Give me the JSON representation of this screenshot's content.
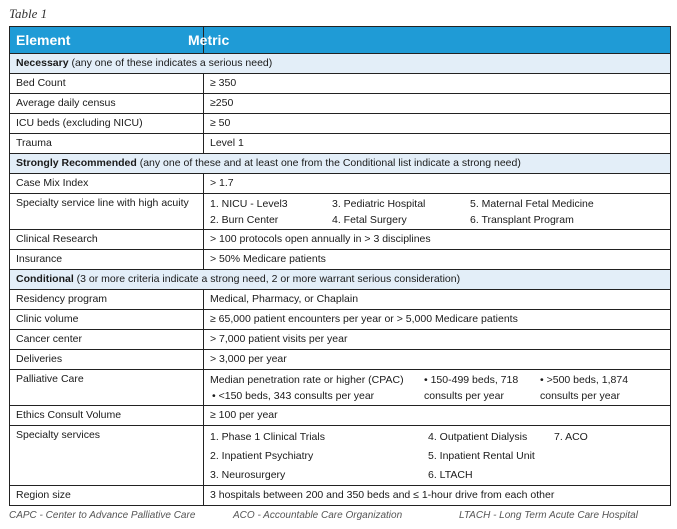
{
  "caption": "Table 1",
  "header": {
    "element": "Element",
    "metric": "Metric"
  },
  "sections": {
    "necessary": {
      "title": "Necessary",
      "note": " (any one of these indicates a serious need)"
    },
    "strong": {
      "title": "Strongly Recommended",
      "note": " (any one of these and at least one from the Conditional list indicate a strong need)"
    },
    "conditional": {
      "title": "Conditional",
      "note": " (3 or more criteria indicate a strong need, 2 or more warrant serious consideration)"
    }
  },
  "rows": {
    "bed": [
      "Bed Count",
      "≥ 350"
    ],
    "census": [
      "Average daily census",
      "≥250"
    ],
    "icu": [
      "ICU beds (excluding NICU)",
      "≥ 50"
    ],
    "trauma": [
      "Trauma",
      "Level 1"
    ],
    "cmi": [
      "Case Mix Index",
      "> 1.7"
    ],
    "specialty_line": {
      "label": "Specialty service line with high acuity",
      "items": [
        "1. NICU - Level3",
        "3. Pediatric Hospital",
        "5. Maternal Fetal Medicine",
        "2. Burn Center",
        "4. Fetal Surgery",
        "6. Transplant Program"
      ]
    },
    "research": [
      "Clinical Research",
      "> 100 protocols open annually in > 3 disciplines"
    ],
    "insurance": [
      "Insurance",
      "> 50% Medicare patients"
    ],
    "residency": [
      "Residency program",
      "Medical, Pharmacy, or Chaplain"
    ],
    "clinic": [
      "Clinic volume",
      "≥ 65,000 patient encounters per year or > 5,000 Medicare patients"
    ],
    "cancer": [
      "Cancer center",
      "> 7,000 patient visits per year"
    ],
    "deliveries": [
      "Deliveries",
      "> 3,000 per year"
    ],
    "palliative": {
      "label": "Palliative Care",
      "items": [
        "Median penetration rate or higher (CPAC)",
        "• 150-499 beds, 718 consults per year",
        "• >500 beds, 1,874 consults per year",
        "• <150 beds, 343 consults per year"
      ]
    },
    "ethics": [
      "Ethics Consult Volume",
      "≥ 100 per year"
    ],
    "services": {
      "label": "Specialty services",
      "items": [
        "1. Phase 1 Clinical Trials",
        "4. Outpatient Dialysis",
        "7. ACO",
        "2. Inpatient Psychiatry",
        "5. Inpatient Rental Unit",
        "3. Neurosurgery",
        "6. LTACH"
      ]
    },
    "region": [
      "Region size",
      "3 hospitals between 200 and 350 beds and ≤ 1-hour drive from each other"
    ]
  },
  "footnotes": [
    "CAPC - Center to Advance Palliative Care",
    "ACO - Accountable Care Organization",
    "LTACH - Long Term Acute Care Hospital"
  ]
}
